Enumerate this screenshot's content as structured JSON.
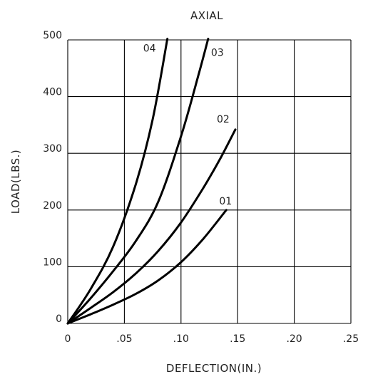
{
  "chart_data": {
    "type": "line",
    "title": "AXIAL",
    "xlabel": "DEFLECTION(IN.)",
    "ylabel": "LOAD(LBS.)",
    "xlim": [
      0,
      0.25
    ],
    "ylim": [
      0,
      500
    ],
    "x_ticks": [
      "0",
      ".05",
      ".10",
      ".15",
      ".20",
      ".25"
    ],
    "y_ticks": [
      "0",
      "100",
      "200",
      "300",
      "400",
      "500"
    ],
    "grid": true,
    "series": [
      {
        "name": "01",
        "x": [
          0,
          0.02,
          0.04,
          0.06,
          0.08,
          0.1,
          0.12,
          0.14
        ],
        "y": [
          0,
          16,
          33,
          52,
          76,
          108,
          150,
          200
        ]
      },
      {
        "name": "02",
        "x": [
          0,
          0.02,
          0.04,
          0.06,
          0.08,
          0.1,
          0.12,
          0.135,
          0.148
        ],
        "y": [
          0,
          27,
          55,
          88,
          128,
          178,
          240,
          292,
          342
        ]
      },
      {
        "name": "03",
        "x": [
          0,
          0.02,
          0.04,
          0.06,
          0.08,
          0.1,
          0.115,
          0.124
        ],
        "y": [
          0,
          44,
          92,
          145,
          215,
          330,
          435,
          502
        ]
      },
      {
        "name": "04",
        "x": [
          0,
          0.02,
          0.04,
          0.06,
          0.075,
          0.088
        ],
        "y": [
          0,
          60,
          135,
          245,
          360,
          502
        ]
      }
    ]
  }
}
